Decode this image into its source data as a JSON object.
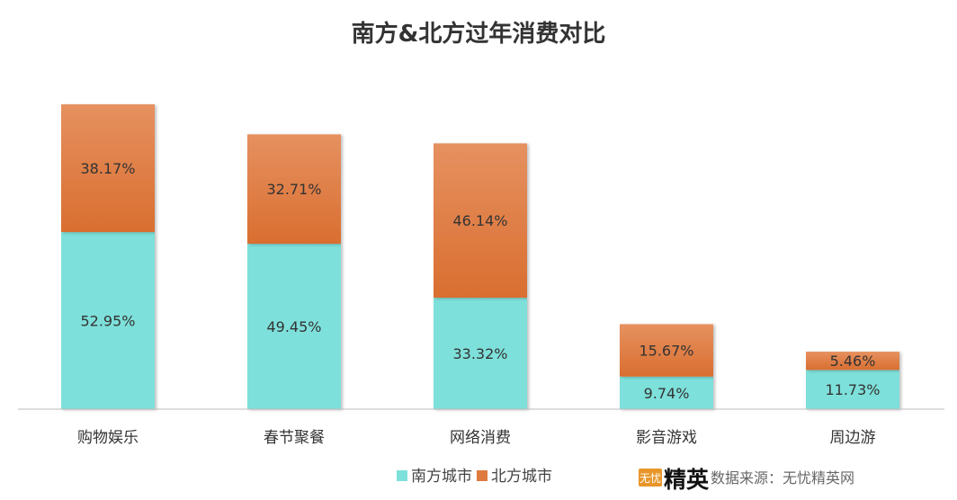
{
  "chart_data": {
    "type": "bar",
    "stacked": true,
    "title": "南方&北方过年消费对比",
    "categories": [
      "购物娱乐",
      "春节聚餐",
      "网络消费",
      "影音游戏",
      "周边游"
    ],
    "series": [
      {
        "name": "南方城市",
        "color": "#7ee0da",
        "values": [
          52.95,
          49.45,
          33.32,
          9.74,
          11.73
        ],
        "labels": [
          "52.95%",
          "49.45%",
          "33.32%",
          "9.74%",
          "11.73%"
        ]
      },
      {
        "name": "北方城市",
        "color": "#df7a3e",
        "values": [
          38.17,
          32.71,
          46.14,
          15.67,
          5.46
        ],
        "labels": [
          "38.17%",
          "32.71%",
          "46.14%",
          "15.67%",
          "5.46%"
        ]
      }
    ],
    "ylim": [
      0,
      100
    ],
    "grid": false,
    "legend": "bottom"
  },
  "source": {
    "logo_small": "无忧",
    "logo_big": "精英",
    "text": "数据来源：无忧精英网"
  }
}
